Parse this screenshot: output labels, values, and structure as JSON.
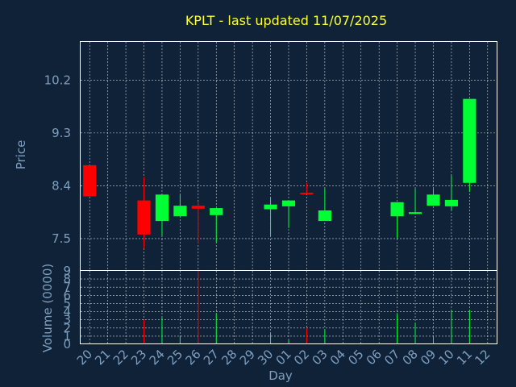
{
  "chart_data": {
    "type": "candlestick",
    "title": "KPLT - last updated 11/07/2025",
    "xlabel": "Day",
    "ylabel": "Price",
    "volume_label": "Volume (0000)",
    "price_ylim": [
      6.95,
      10.85
    ],
    "price_ticks": [
      7.5,
      8.4,
      9.3,
      10.2
    ],
    "price_tick_labels": [
      "7.5",
      "8.4",
      "9.3",
      "10.2"
    ],
    "volume_ylim": [
      0,
      9
    ],
    "volume_ticks": [
      0,
      1,
      2,
      3,
      4,
      5,
      6,
      7,
      8,
      9
    ],
    "volume_tick_labels": [
      "0",
      "1",
      "2",
      "3",
      "4",
      "5",
      "6",
      "7",
      "8",
      "9"
    ],
    "x_tick_labels": [
      "20",
      "21",
      "22",
      "23",
      "24",
      "25",
      "26",
      "27",
      "28",
      "29",
      "30",
      "01",
      "02",
      "03",
      "04",
      "05",
      "06",
      "07",
      "08",
      "09",
      "10",
      "11",
      "12"
    ],
    "colors": {
      "up": "#00ff33",
      "down": "#ff0000",
      "background": "#0f2238",
      "title": "#ffff33",
      "axis_text": "#7f9fbf"
    },
    "candles": [
      {
        "day": "20",
        "open": 8.75,
        "high": 8.75,
        "low": 8.22,
        "close": 8.22,
        "volume": 0
      },
      {
        "day": "23",
        "open": 8.15,
        "high": 8.55,
        "low": 7.33,
        "close": 7.57,
        "volume": 3.0
      },
      {
        "day": "24",
        "open": 7.8,
        "high": 8.25,
        "low": 7.55,
        "close": 8.25,
        "volume": 3.3
      },
      {
        "day": "25",
        "open": 7.88,
        "high": 8.25,
        "low": 7.88,
        "close": 8.06,
        "volume": 1.0
      },
      {
        "day": "26",
        "open": 8.06,
        "high": 8.13,
        "low": 7.42,
        "close": 8.01,
        "volume": 9.0
      },
      {
        "day": "27",
        "open": 7.9,
        "high": 8.02,
        "low": 7.44,
        "close": 8.02,
        "volume": 3.8
      },
      {
        "day": "30",
        "open": 8.0,
        "high": 8.2,
        "low": 7.55,
        "close": 8.08,
        "volume": 1.3
      },
      {
        "day": "01",
        "open": 8.05,
        "high": 8.15,
        "low": 7.68,
        "close": 8.15,
        "volume": 0.5
      },
      {
        "day": "02",
        "open": 8.28,
        "high": 8.45,
        "low": 8.26,
        "close": 8.26,
        "volume": 2.0
      },
      {
        "day": "03",
        "open": 7.8,
        "high": 8.35,
        "low": 7.8,
        "close": 7.98,
        "volume": 1.8
      },
      {
        "day": "07",
        "open": 7.88,
        "high": 8.12,
        "low": 7.5,
        "close": 8.12,
        "volume": 3.7
      },
      {
        "day": "08",
        "open": 7.92,
        "high": 8.35,
        "low": 7.92,
        "close": 7.95,
        "volume": 2.6
      },
      {
        "day": "09",
        "open": 8.06,
        "high": 8.35,
        "low": 8.06,
        "close": 8.25,
        "volume": 1.0
      },
      {
        "day": "10",
        "open": 8.05,
        "high": 8.58,
        "low": 7.98,
        "close": 8.16,
        "volume": 4.2
      },
      {
        "day": "11",
        "open": 8.45,
        "high": 9.88,
        "low": 8.3,
        "close": 9.88,
        "volume": 4.2
      }
    ]
  }
}
